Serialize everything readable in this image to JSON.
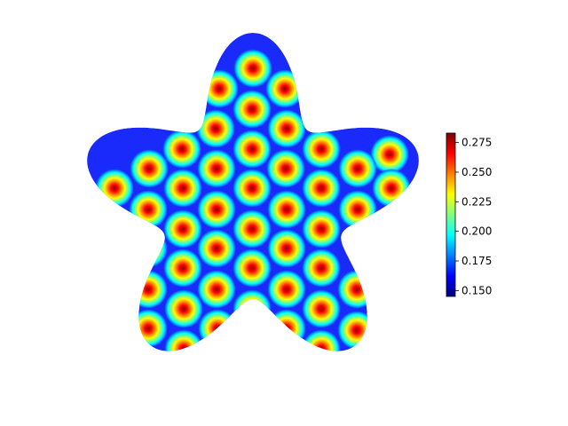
{
  "chart_data": {
    "type": "heatmap",
    "title": "",
    "xlabel": "",
    "ylabel": "",
    "axes_visible": false,
    "grid": false,
    "colormap": "jet",
    "description_of_field": "periodic spot (Turing-like) pattern on a five-armed star-shaped domain",
    "field_range": [
      0.15,
      0.283
    ],
    "spot_centers": [
      [
        285,
        77
      ],
      [
        247,
        100
      ],
      [
        321,
        100
      ],
      [
        284,
        123
      ],
      [
        243,
        145
      ],
      [
        323,
        145
      ],
      [
        205,
        168
      ],
      [
        284,
        168
      ],
      [
        362,
        168
      ],
      [
        439,
        174
      ],
      [
        168,
        190
      ],
      [
        244,
        190
      ],
      [
        322,
        190
      ],
      [
        403,
        190
      ],
      [
        129,
        212
      ],
      [
        206,
        212
      ],
      [
        284,
        212
      ],
      [
        362,
        212
      ],
      [
        441,
        212
      ],
      [
        167,
        236
      ],
      [
        244,
        236
      ],
      [
        323,
        236
      ],
      [
        403,
        236
      ],
      [
        128,
        256
      ],
      [
        206,
        258
      ],
      [
        284,
        258
      ],
      [
        362,
        258
      ],
      [
        440,
        256
      ],
      [
        167,
        280
      ],
      [
        244,
        280
      ],
      [
        323,
        280
      ],
      [
        206,
        302
      ],
      [
        284,
        302
      ],
      [
        362,
        302
      ],
      [
        167,
        326
      ],
      [
        244,
        326
      ],
      [
        323,
        326
      ],
      [
        402,
        326
      ],
      [
        207,
        348
      ],
      [
        284,
        348
      ],
      [
        362,
        348
      ],
      [
        167,
        370
      ],
      [
        245,
        370
      ],
      [
        323,
        370
      ],
      [
        402,
        372
      ],
      [
        207,
        393
      ],
      [
        362,
        393
      ],
      [
        401,
        414
      ]
    ],
    "colorbar": {
      "min": 0.145,
      "max": 0.283,
      "ticks": [
        0.15,
        0.175,
        0.2,
        0.225,
        0.25,
        0.275
      ],
      "tick_labels": [
        "0.150",
        "0.175",
        "0.200",
        "0.225",
        "0.250",
        "0.275"
      ]
    }
  },
  "colors": {
    "background_low": "#1a2bff",
    "colorbar_stops": [
      "#00007f",
      "#0000ff",
      "#007fff",
      "#00ffff",
      "#7fff7f",
      "#ffff00",
      "#ff7f00",
      "#ff0000",
      "#7f0000"
    ]
  }
}
